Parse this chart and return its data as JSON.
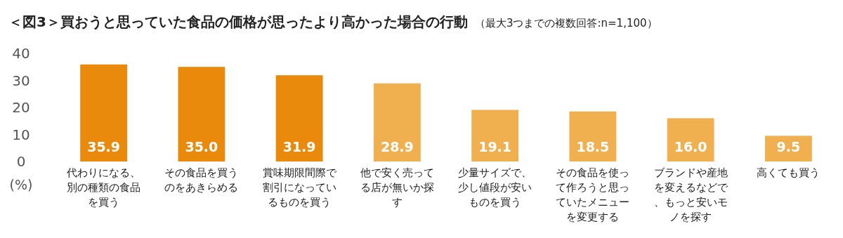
{
  "chart_data": {
    "type": "bar",
    "title": "＜図3＞買おうと思っていた食品の価格が思ったより高かった場合の行動",
    "subtitle": "（最大3つまでの複数回答:n=1,100）",
    "ylabel": "(%)",
    "categories": [
      "代わりになる、別の種類の食品を買う",
      "その食品を買うのをあきらめる",
      "賞味期限間際で割引になっているものを買う",
      "他で安く売ってる店が無いか探す",
      "少量サイズで、少し値段が安いものを買う",
      "その食品を使って作ろうと思っていたメニューを変更する",
      "ブランドや産地を変えるなどで、もっと安いモノを探す",
      "高くても買う"
    ],
    "values": [
      35.9,
      35.0,
      31.9,
      28.9,
      19.1,
      18.5,
      16.0,
      9.5
    ],
    "colors": [
      "#ea8a0c",
      "#ea8a0c",
      "#ea8a0c",
      "#f0b050",
      "#f0b050",
      "#f0b050",
      "#f0b050",
      "#f0b050"
    ],
    "value_labels": [
      "35.9",
      "35.0",
      "31.9",
      "28.9",
      "19.1",
      "18.5",
      "16.0",
      "9.5"
    ],
    "ylim": [
      0,
      40
    ],
    "yticks": [
      0,
      10,
      20,
      30,
      40
    ]
  }
}
